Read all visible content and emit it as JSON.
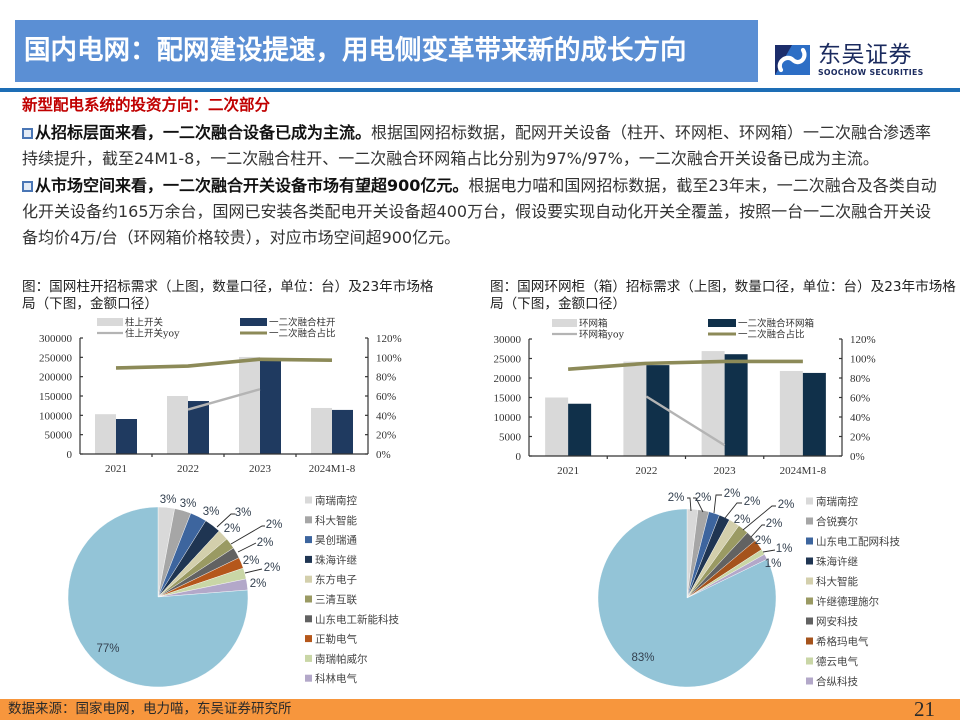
{
  "header": {
    "title": "国内电网：配网建设提速，用电侧变革带来新的成长方向",
    "logo_cn": "东吴证券",
    "logo_en": "SOOCHOW SECURITIES"
  },
  "section": {
    "subtitle": "新型配电系统的投资方向：二次部分",
    "paragraphs": [
      {
        "lines": [
          {
            "bold": "从招标层面来看，一二次融合设备已成为主流。",
            "text": "根据国网招标数据，配网开关设备（柱开、环网柜、环网箱）一二次融合渗透率"
          },
          {
            "text": "持续提升，截至24M1-8，一二次融合柱开、一二次融合环网箱占比分别为97%/97%，一二次融合开关设备已成为主流。"
          }
        ]
      },
      {
        "lines": [
          {
            "bold": "从市场空间来看，一二次融合开关设备市场有望超900亿元。",
            "text": "根据电力喵和国网招标数据，截至23年末，一二次融合及各类自动"
          },
          {
            "text": "化开关设备约165万余台，国网已安装各类配电开关设备超400万台，假设要实现自动化开关全覆盖，按照一台一二次融合开关设"
          },
          {
            "text": "备均价4万/台（环网箱价格较贵），对应市场空间超900亿元。"
          }
        ]
      }
    ]
  },
  "figures": {
    "left": {
      "caption_lines": [
        "图：国网柱开招标需求（上图，数量口径，单位：台）及23年市场格",
        "局（下图，金额口径）"
      ]
    },
    "right": {
      "caption_lines": [
        "图：国网环网柜（箱）招标需求（上图，数量口径，单位：台）及23年市场格",
        "局（下图，金额口径）"
      ]
    }
  },
  "footer": {
    "source": "数据来源：国家电网，电力喵，东吴证券研究所",
    "page": "21"
  },
  "colors": {
    "title_bar": "#5b8fd4",
    "title_rule": "#1d6db5",
    "subtitle": "#c00000",
    "footer_bar": "#f7963d"
  },
  "chart_data": [
    {
      "type": "bar",
      "title": "国网柱开招标需求（数量口径，单位：台）",
      "categories": [
        "2021",
        "2022",
        "2023",
        "2024M1-8"
      ],
      "ylim_left": [
        0,
        300000
      ],
      "yticks_left": [
        0,
        50000,
        100000,
        150000,
        200000,
        250000,
        300000
      ],
      "ylim_right": [
        0,
        120
      ],
      "yticks_right": [
        "0%",
        "20%",
        "40%",
        "60%",
        "80%",
        "100%",
        "120%"
      ],
      "grid": false,
      "legend_position": "top",
      "series": [
        {
          "name": "柱上开关",
          "kind": "bar",
          "axis": "left",
          "color": "#d9d9d9",
          "values": [
            103000,
            150000,
            251000,
            119000
          ]
        },
        {
          "name": "一二次融合柱开",
          "kind": "bar",
          "axis": "left",
          "color": "#1f3a60",
          "values": [
            90500,
            137000,
            245000,
            114000
          ]
        },
        {
          "name": "住上开关yoy",
          "kind": "line",
          "axis": "right",
          "unit": "%",
          "color": "#b4b4b4",
          "values": [
            null,
            46,
            67,
            null
          ]
        },
        {
          "name": "一二次融合占比",
          "kind": "line",
          "axis": "right",
          "unit": "%",
          "color": "#8c8a58",
          "values": [
            89,
            91,
            98,
            97
          ]
        }
      ]
    },
    {
      "type": "bar",
      "title": "国网环网柜（箱）招标需求（数量口径，单位：台）",
      "categories": [
        "2021",
        "2022",
        "2023",
        "2024M1-8"
      ],
      "ylim_left": [
        0,
        30000
      ],
      "yticks_left": [
        0,
        5000,
        10000,
        15000,
        20000,
        25000,
        30000
      ],
      "ylim_right": [
        0,
        120
      ],
      "yticks_right": [
        "0%",
        "20%",
        "40%",
        "60%",
        "80%",
        "100%",
        "120%"
      ],
      "grid": false,
      "legend_position": "top",
      "series": [
        {
          "name": "环网箱",
          "kind": "bar",
          "axis": "left",
          "color": "#d9d9d9",
          "values": [
            15000,
            24200,
            26900,
            21800
          ]
        },
        {
          "name": "一二次融合环网箱",
          "kind": "bar",
          "axis": "left",
          "color": "#10304a",
          "values": [
            13400,
            23300,
            26100,
            21300
          ]
        },
        {
          "name": "环网箱yoy",
          "kind": "line",
          "axis": "right",
          "unit": "%",
          "color": "#b4b4b4",
          "values": [
            null,
            61,
            11,
            null
          ]
        },
        {
          "name": "一二次融合占比",
          "kind": "line",
          "axis": "right",
          "unit": "%",
          "color": "#8c8a58",
          "values": [
            89,
            95,
            97,
            97
          ]
        }
      ]
    },
    {
      "type": "pie",
      "title": "23年柱开市场格局（金额口径）",
      "start": "12 o'clock, clockwise",
      "legend_position": "right",
      "slices": [
        {
          "label": "南瑞南控",
          "value": 3,
          "color": "#d9d9d9"
        },
        {
          "label": "科大智能",
          "value": 3,
          "color": "#a6a6a6"
        },
        {
          "label": "昊创瑞通",
          "value": 3,
          "color": "#3d659e"
        },
        {
          "label": "珠海许继",
          "value": 3,
          "color": "#1f3552"
        },
        {
          "label": "东方电子",
          "value": 2,
          "color": "#d3cfac"
        },
        {
          "label": "三清互联",
          "value": 2,
          "color": "#9a9a63"
        },
        {
          "label": "山东电工新能科技",
          "value": 2,
          "color": "#626262"
        },
        {
          "label": "正勒电气",
          "value": 2,
          "color": "#b5571b"
        },
        {
          "label": "南瑞帕威尔",
          "value": 2,
          "color": "#c9d6a6"
        },
        {
          "label": "科林电气",
          "value": 2,
          "color": "#b3a8c9"
        },
        {
          "label": null,
          "value": 77,
          "color": "#93c4d7"
        }
      ]
    },
    {
      "type": "pie",
      "title": "23年环网柜（箱）市场格局（金额口径）",
      "start": "12 o'clock, clockwise",
      "legend_position": "right",
      "slices": [
        {
          "label": "南瑞南控",
          "value": 2,
          "color": "#d9d9d9"
        },
        {
          "label": "合锐赛尔",
          "value": 2,
          "color": "#a6a6a6"
        },
        {
          "label": "山东电工配网科技",
          "value": 2,
          "color": "#3d659e"
        },
        {
          "label": "珠海许继",
          "value": 2,
          "color": "#1f3552"
        },
        {
          "label": "科大智能",
          "value": 2,
          "color": "#d3cfac"
        },
        {
          "label": "许继德理施尔",
          "value": 2,
          "color": "#9a9a63"
        },
        {
          "label": "网安科技",
          "value": 2,
          "color": "#626262"
        },
        {
          "label": "希格玛电气",
          "value": 2,
          "color": "#a5531c"
        },
        {
          "label": "德云电气",
          "value": 1,
          "color": "#c9d6a6"
        },
        {
          "label": "合纵科技",
          "value": 1,
          "color": "#b3a8c9"
        },
        {
          "label": null,
          "value": 83,
          "color": "#93c4d7"
        }
      ]
    }
  ]
}
